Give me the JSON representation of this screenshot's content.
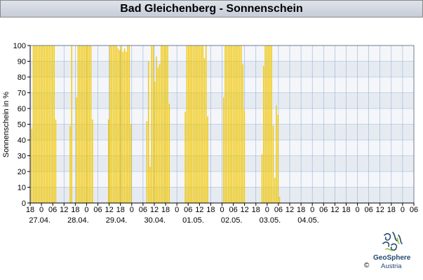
{
  "title": "Bad Gleichenberg - Sonnenschein",
  "branding": {
    "name": "GeoSphere",
    "sub": "Austria",
    "copyright": "©"
  },
  "colors": {
    "bar": "#f2c700",
    "band_dark": "#e6ebf2",
    "band_light": "#f4f6fa",
    "grid": "#9ab3d0",
    "axis": "#000000"
  },
  "chart_data": {
    "type": "bar",
    "title": "Bad Gleichenberg - Sonnenschein",
    "ylabel": "Sonnenschein in %",
    "xlabel": "",
    "ylim": [
      0,
      100
    ],
    "yticks": [
      0,
      10,
      20,
      30,
      40,
      50,
      60,
      70,
      80,
      90,
      100
    ],
    "xlim_hours": [
      0,
      240
    ],
    "x_unit": "hours since 27.04. 18:00",
    "hour_tick_labels": [
      "18",
      "0",
      "06",
      "12",
      "18",
      "0",
      "06",
      "12",
      "18",
      "0",
      "06",
      "12",
      "18",
      "0",
      "06",
      "12",
      "18",
      "0",
      "06",
      "12",
      "18",
      "0",
      "06",
      "12",
      "18",
      "0",
      "06",
      "12",
      "18",
      "0",
      "06",
      "12",
      "18",
      "0",
      "06"
    ],
    "date_labels": [
      "27.04.",
      "28.04.",
      "29.04.",
      "30.04.",
      "01.05.",
      "02.05.",
      "03.05.",
      "04.05."
    ],
    "grid": true,
    "legend": "none",
    "series": [
      {
        "values": [
          [
            1,
            47
          ],
          [
            2,
            100
          ],
          [
            3,
            100
          ],
          [
            4,
            100
          ],
          [
            5,
            100
          ],
          [
            6,
            100
          ],
          [
            7,
            100
          ],
          [
            8,
            100
          ],
          [
            9,
            100
          ],
          [
            10,
            100
          ],
          [
            11,
            100
          ],
          [
            12,
            100
          ],
          [
            13,
            100
          ],
          [
            14,
            100
          ],
          [
            15,
            100
          ],
          [
            16,
            53
          ],
          [
            25,
            49
          ],
          [
            26,
            100
          ],
          [
            29,
            67
          ],
          [
            30,
            100
          ],
          [
            31,
            100
          ],
          [
            32,
            100
          ],
          [
            33,
            100
          ],
          [
            34,
            100
          ],
          [
            35,
            100
          ],
          [
            36,
            100
          ],
          [
            37,
            100
          ],
          [
            38,
            100
          ],
          [
            39,
            53
          ],
          [
            49,
            53
          ],
          [
            50,
            100
          ],
          [
            51,
            100
          ],
          [
            52,
            100
          ],
          [
            53,
            100
          ],
          [
            54,
            100
          ],
          [
            55,
            98
          ],
          [
            56,
            97
          ],
          [
            57,
            100
          ],
          [
            58,
            96
          ],
          [
            59,
            98
          ],
          [
            60,
            96
          ],
          [
            61,
            100
          ],
          [
            62,
            100
          ],
          [
            63,
            50
          ],
          [
            73,
            52
          ],
          [
            74,
            90
          ],
          [
            75,
            23
          ],
          [
            76,
            100
          ],
          [
            77,
            100
          ],
          [
            78,
            77
          ],
          [
            79,
            93
          ],
          [
            80,
            86
          ],
          [
            81,
            88
          ],
          [
            82,
            100
          ],
          [
            83,
            100
          ],
          [
            84,
            100
          ],
          [
            85,
            100
          ],
          [
            86,
            100
          ],
          [
            87,
            63
          ],
          [
            97,
            58
          ],
          [
            98,
            100
          ],
          [
            99,
            100
          ],
          [
            100,
            100
          ],
          [
            101,
            100
          ],
          [
            102,
            100
          ],
          [
            103,
            100
          ],
          [
            104,
            100
          ],
          [
            105,
            100
          ],
          [
            106,
            100
          ],
          [
            107,
            100
          ],
          [
            108,
            100
          ],
          [
            109,
            92
          ],
          [
            110,
            100
          ],
          [
            111,
            55
          ],
          [
            121,
            67
          ],
          [
            122,
            100
          ],
          [
            123,
            100
          ],
          [
            124,
            100
          ],
          [
            125,
            100
          ],
          [
            126,
            100
          ],
          [
            127,
            100
          ],
          [
            128,
            100
          ],
          [
            129,
            100
          ],
          [
            130,
            100
          ],
          [
            131,
            100
          ],
          [
            132,
            100
          ],
          [
            133,
            88
          ],
          [
            134,
            59
          ],
          [
            145,
            31
          ],
          [
            146,
            87
          ],
          [
            147,
            100
          ],
          [
            148,
            100
          ],
          [
            149,
            100
          ],
          [
            150,
            100
          ],
          [
            151,
            100
          ],
          [
            152,
            49
          ],
          [
            153,
            16
          ],
          [
            154,
            62
          ],
          [
            155,
            56
          ],
          [
            156,
            4
          ]
        ]
      }
    ]
  }
}
